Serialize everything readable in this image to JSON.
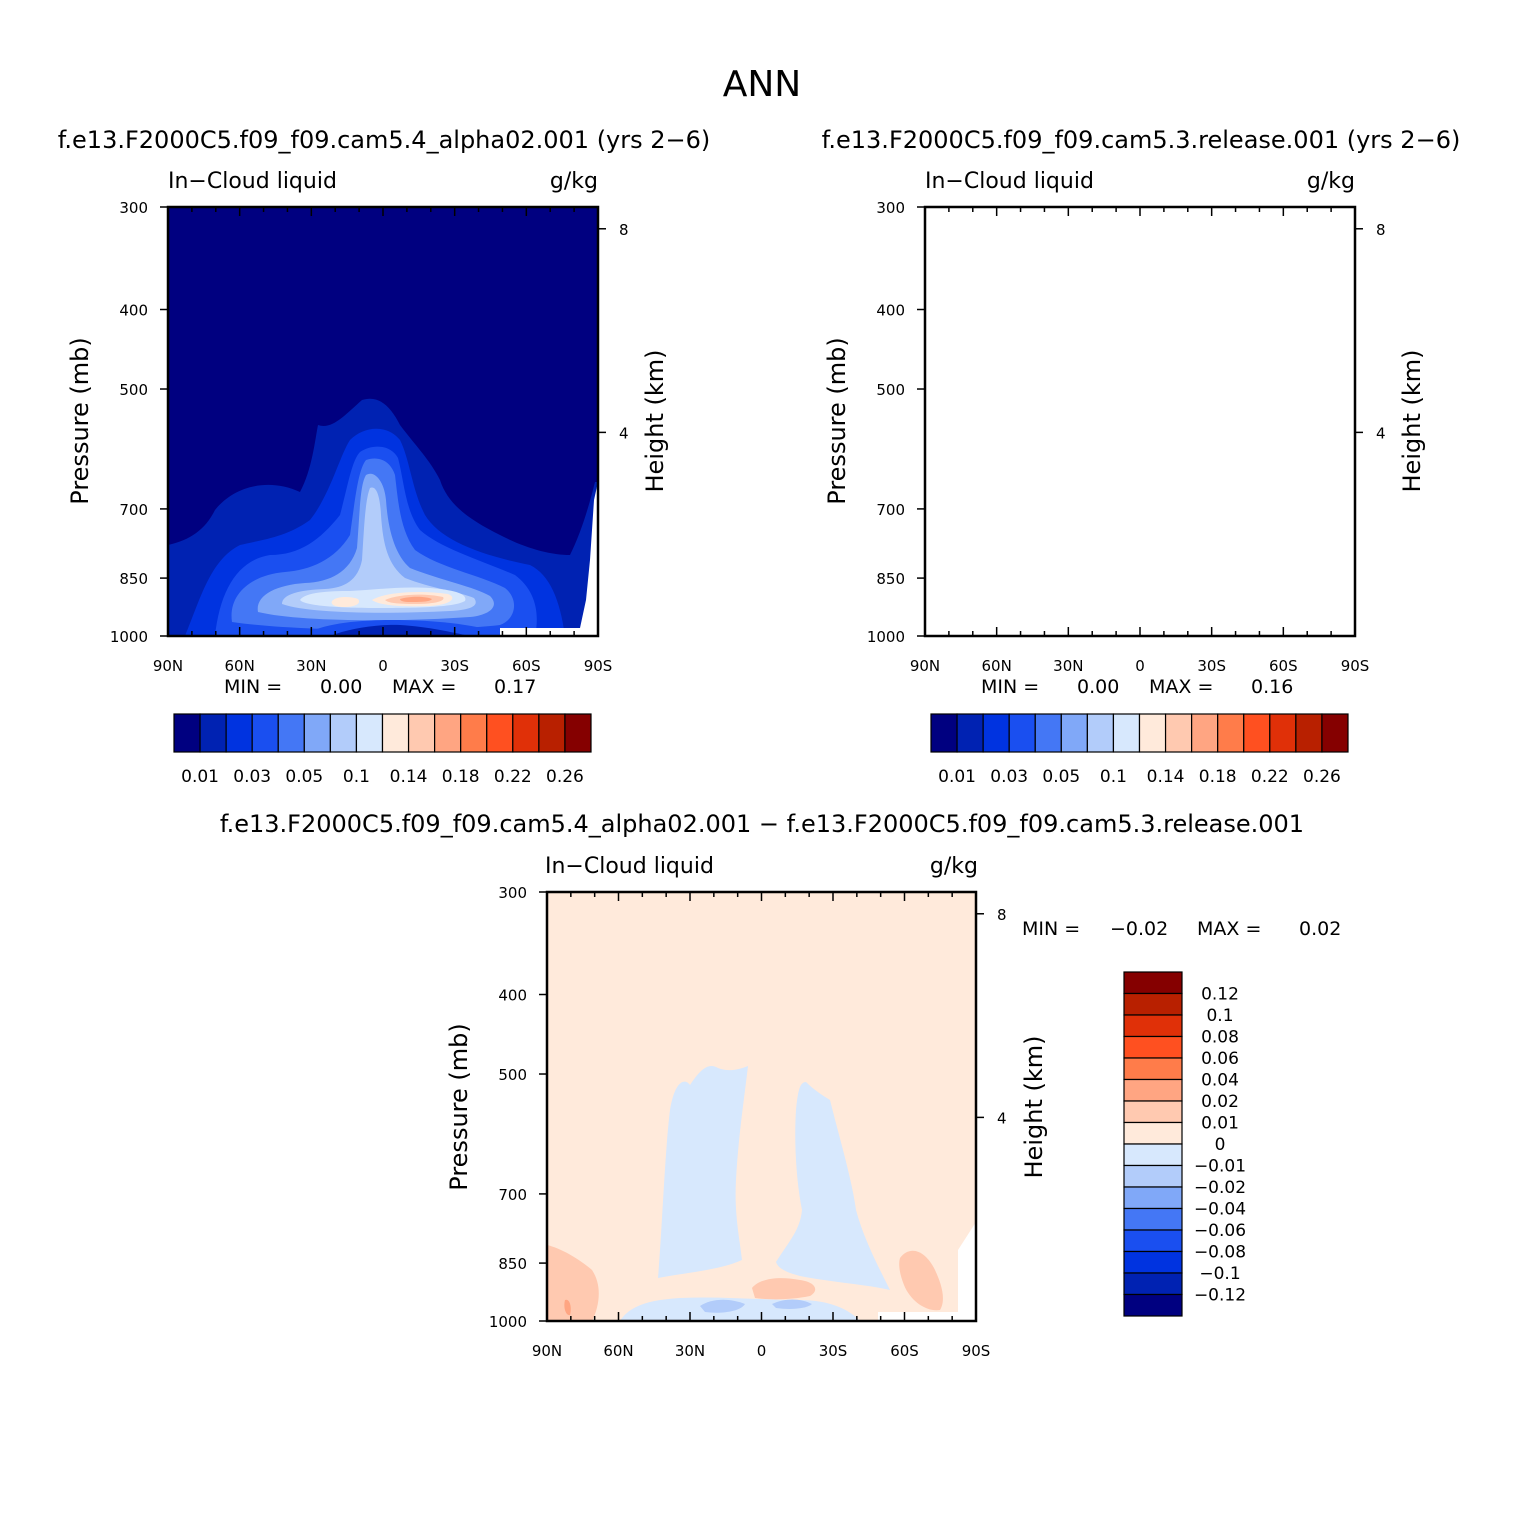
{
  "page_title": "ANN",
  "chart_data": [
    {
      "type": "heatmap",
      "id": "test",
      "case_title": "f.e13.F2000C5.f09_f09.cam5.4_alpha02.001 (yrs 2−6)",
      "left_label": "In−Cloud liquid",
      "right_label": "g/kg",
      "ylabel": "Pressure (mb)",
      "ylabel_right": "Height (km)",
      "x_ticks": [
        "90N",
        "60N",
        "30N",
        "0",
        "30S",
        "60S",
        "90S"
      ],
      "y_ticks": [
        "300",
        "400",
        "500",
        "700",
        "850",
        "1000"
      ],
      "y_ticks_right": [
        "8",
        "4"
      ],
      "min_label": "MIN =",
      "min_value": "0.00",
      "max_label": "MAX =",
      "max_value": "0.17",
      "colorbar_labels": [
        "0.01",
        "0.03",
        "0.05",
        "0.1",
        "0.14",
        "0.18",
        "0.22",
        "0.26"
      ],
      "colorbar_levels": [
        0.01,
        0.02,
        0.03,
        0.04,
        0.05,
        0.07,
        0.1,
        0.12,
        0.14,
        0.16,
        0.18,
        0.2,
        0.22,
        0.24,
        0.26
      ]
    },
    {
      "type": "heatmap",
      "id": "control",
      "case_title": "f.e13.F2000C5.f09_f09.cam5.3.release.001 (yrs 2−6)",
      "left_label": "In−Cloud liquid",
      "right_label": "g/kg",
      "ylabel": "Pressure (mb)",
      "ylabel_right": "Height (km)",
      "x_ticks": [
        "90N",
        "60N",
        "30N",
        "0",
        "30S",
        "60S",
        "90S"
      ],
      "y_ticks": [
        "300",
        "400",
        "500",
        "700",
        "850",
        "1000"
      ],
      "y_ticks_right": [
        "8",
        "4"
      ],
      "min_label": "MIN =",
      "min_value": "0.00",
      "max_label": "MAX =",
      "max_value": "0.16",
      "colorbar_labels": [
        "0.01",
        "0.03",
        "0.05",
        "0.1",
        "0.14",
        "0.18",
        "0.22",
        "0.26"
      ],
      "colorbar_levels": [
        0.01,
        0.02,
        0.03,
        0.04,
        0.05,
        0.07,
        0.1,
        0.12,
        0.14,
        0.16,
        0.18,
        0.2,
        0.22,
        0.24,
        0.26
      ]
    },
    {
      "type": "heatmap",
      "id": "difference",
      "case_title": "f.e13.F2000C5.f09_f09.cam5.4_alpha02.001 − f.e13.F2000C5.f09_f09.cam5.3.release.001",
      "left_label": "In−Cloud liquid",
      "right_label": "g/kg",
      "ylabel": "Pressure (mb)",
      "ylabel_right": "Height (km)",
      "x_ticks": [
        "90N",
        "60N",
        "30N",
        "0",
        "30S",
        "60S",
        "90S"
      ],
      "y_ticks": [
        "300",
        "400",
        "500",
        "700",
        "850",
        "1000"
      ],
      "y_ticks_right": [
        "8",
        "4"
      ],
      "min_label": "MIN =",
      "min_value": "−0.02",
      "max_label": "MAX =",
      "max_value": "0.02",
      "colorbar_labels": [
        "0.12",
        "0.1",
        "0.08",
        "0.06",
        "0.04",
        "0.02",
        "0.01",
        "0",
        "−0.01",
        "−0.02",
        "−0.04",
        "−0.06",
        "−0.08",
        "−0.1",
        "−0.12"
      ]
    }
  ],
  "colors": {
    "seq": [
      "#000080",
      "#0022b2",
      "#0033e0",
      "#1a4ff0",
      "#4477f5",
      "#80a8f8",
      "#b2ccfa",
      "#d7e8fd",
      "#ffeadb",
      "#ffc9b0",
      "#ffa582",
      "#ff7c4a",
      "#ff5020",
      "#e03008",
      "#b82000",
      "#850000"
    ],
    "diff": [
      "#850000",
      "#b82000",
      "#e03008",
      "#ff5020",
      "#ff7c4a",
      "#ffa582",
      "#ffc9b0",
      "#ffeadb",
      "#d7e8fd",
      "#b2ccfa",
      "#80a8f8",
      "#4477f5",
      "#1a4ff0",
      "#0033e0",
      "#0022b2",
      "#000080"
    ]
  }
}
